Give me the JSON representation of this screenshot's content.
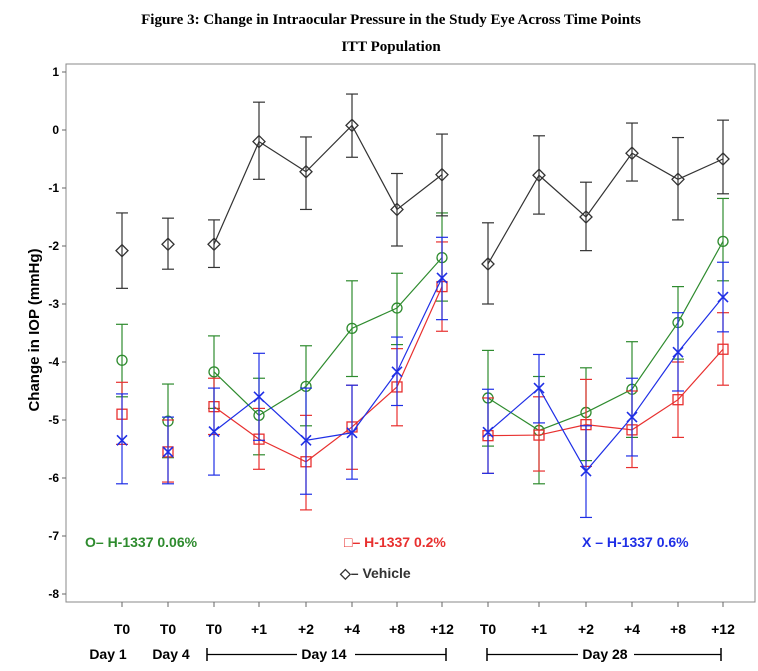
{
  "chart_data": {
    "type": "line",
    "title": "Figure 3:  Change in Intraocular Pressure in the Study Eye Across Time Points",
    "subtitle": "ITT Population",
    "ylabel": "Change in IOP (mmHg)",
    "ylim": [
      -8,
      1
    ],
    "yticks": [
      "1",
      "0",
      "-1",
      "-2",
      "-3",
      "-4",
      "-5",
      "-6",
      "-7",
      "-8"
    ],
    "categories": [
      "T0",
      "T0",
      "T0",
      "+1",
      "+2",
      "+4",
      "+8",
      "+12",
      "T0",
      "+1",
      "+2",
      "+4",
      "+8",
      "+12"
    ],
    "periods": [
      "Day 1",
      "Day 4",
      "Day 14",
      "Day 28"
    ],
    "segments": [
      [
        0,
        0
      ],
      [
        1,
        1
      ],
      [
        2,
        7
      ],
      [
        8,
        13
      ]
    ],
    "series": [
      {
        "name": "H-1337 0.06%",
        "legend": "O– H-1337 0.06%",
        "color": "#2e8b2e",
        "marker": "circle",
        "values": [
          -3.97,
          -5.02,
          -4.17,
          -4.92,
          -4.42,
          -3.42,
          -3.07,
          -2.2,
          -4.62,
          -5.18,
          -4.87,
          -4.47,
          -3.32,
          -1.92
        ],
        "lower": [
          -4.6,
          -5.65,
          -4.8,
          -5.6,
          -5.1,
          -4.25,
          -3.7,
          -2.95,
          -5.45,
          -6.1,
          -5.7,
          -5.3,
          -3.95,
          -2.6
        ],
        "upper": [
          -3.35,
          -4.38,
          -3.55,
          -4.28,
          -3.72,
          -2.6,
          -2.47,
          -1.43,
          -3.8,
          -4.25,
          -4.1,
          -3.65,
          -2.7,
          -1.18
        ]
      },
      {
        "name": "H-1337 0.2%",
        "legend": "□– H-1337 0.2%",
        "color": "#e8302f",
        "marker": "square",
        "values": [
          -4.9,
          -5.55,
          -4.77,
          -5.33,
          -5.72,
          -5.12,
          -4.43,
          -2.7,
          -5.27,
          -5.26,
          -5.08,
          -5.17,
          -4.65,
          -3.78
        ],
        "lower": [
          -5.42,
          -6.07,
          -5.25,
          -5.85,
          -6.55,
          -5.85,
          -5.1,
          -3.47,
          -5.92,
          -5.88,
          -5.8,
          -5.82,
          -5.3,
          -4.4
        ],
        "upper": [
          -4.35,
          -5.0,
          -4.28,
          -4.8,
          -4.92,
          -4.4,
          -3.77,
          -1.93,
          -4.62,
          -4.6,
          -4.3,
          -4.5,
          -4.0,
          -3.15
        ]
      },
      {
        "name": "H-1337 0.6%",
        "legend": "X – H-1337 0.6%",
        "color": "#1f2fe6",
        "marker": "x",
        "values": [
          -5.35,
          -5.55,
          -5.2,
          -4.6,
          -5.35,
          -5.22,
          -4.17,
          -2.55,
          -5.21,
          -4.45,
          -5.88,
          -4.95,
          -3.83,
          -2.88
        ],
        "lower": [
          -6.1,
          -6.1,
          -5.95,
          -5.35,
          -6.28,
          -6.02,
          -4.75,
          -3.27,
          -5.92,
          -5.05,
          -6.68,
          -5.62,
          -4.5,
          -3.48
        ],
        "upper": [
          -4.55,
          -4.95,
          -4.45,
          -3.85,
          -4.45,
          -4.4,
          -3.57,
          -1.85,
          -4.47,
          -3.87,
          -5.1,
          -4.28,
          -3.15,
          -2.28
        ]
      },
      {
        "name": "Vehicle",
        "legend": "◇– Vehicle",
        "color": "#333333",
        "marker": "diamond",
        "values": [
          -2.08,
          -1.97,
          -1.97,
          -0.2,
          -0.72,
          0.08,
          -1.37,
          -0.77,
          -2.31,
          -0.78,
          -1.5,
          -0.4,
          -0.85,
          -0.5
        ],
        "lower": [
          -2.73,
          -2.4,
          -2.37,
          -0.85,
          -1.37,
          -0.47,
          -2.0,
          -1.48,
          -3.0,
          -1.45,
          -2.08,
          -0.88,
          -1.55,
          -1.1
        ],
        "upper": [
          -1.43,
          -1.52,
          -1.55,
          0.48,
          -0.12,
          0.62,
          -0.75,
          -0.07,
          -1.6,
          -0.1,
          -0.9,
          0.12,
          -0.13,
          0.17
        ]
      }
    ]
  }
}
